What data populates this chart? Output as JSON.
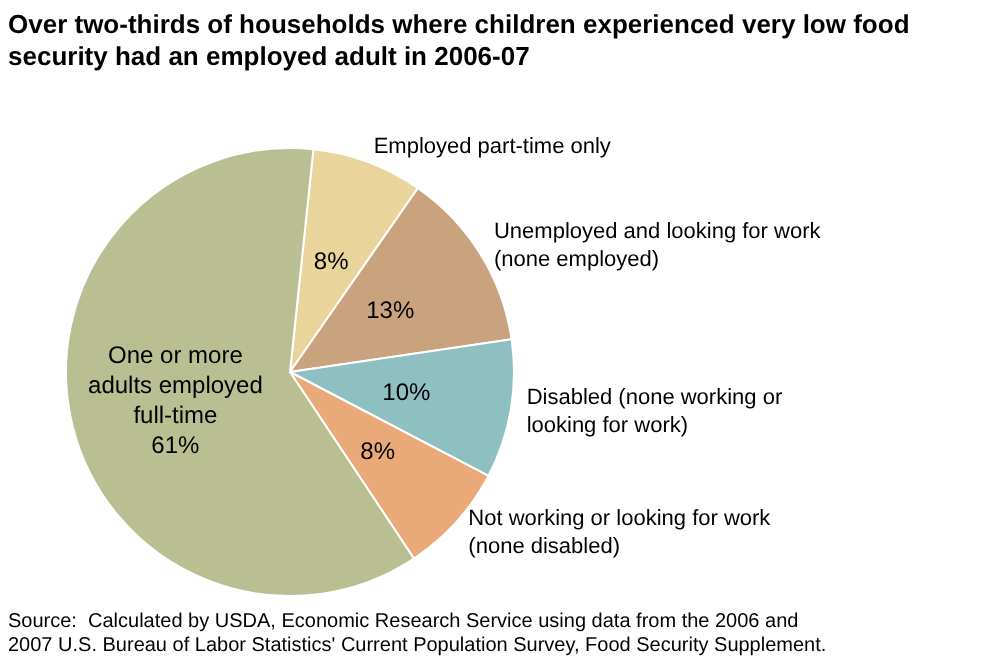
{
  "chart_data": {
    "type": "pie",
    "title": "Over two-thirds of households where children experienced very low food\nsecurity had an employed adult in 2006-07",
    "categories": [
      "Employed part-time only",
      "Unemployed and looking for work\n(none employed)",
      "Disabled (none working or\nlooking for work)",
      "Not working or looking for work\n(none disabled)",
      "One or more\nadults employed\nfull-time"
    ],
    "values": [
      8,
      13,
      10,
      8,
      61
    ],
    "value_labels": [
      "8%",
      "13%",
      "10%",
      "8%",
      "61%"
    ],
    "colors": [
      "#e9d59b",
      "#c9a37d",
      "#8fc0c1",
      "#e9a979",
      "#b9bf92"
    ],
    "annotations": [
      "Source:  Calculated by USDA, Economic Research Service using data from the 2006 and\n2007 U.S. Bureau of Labor Statistics' Current Population Survey, Food Security Supplement."
    ]
  }
}
